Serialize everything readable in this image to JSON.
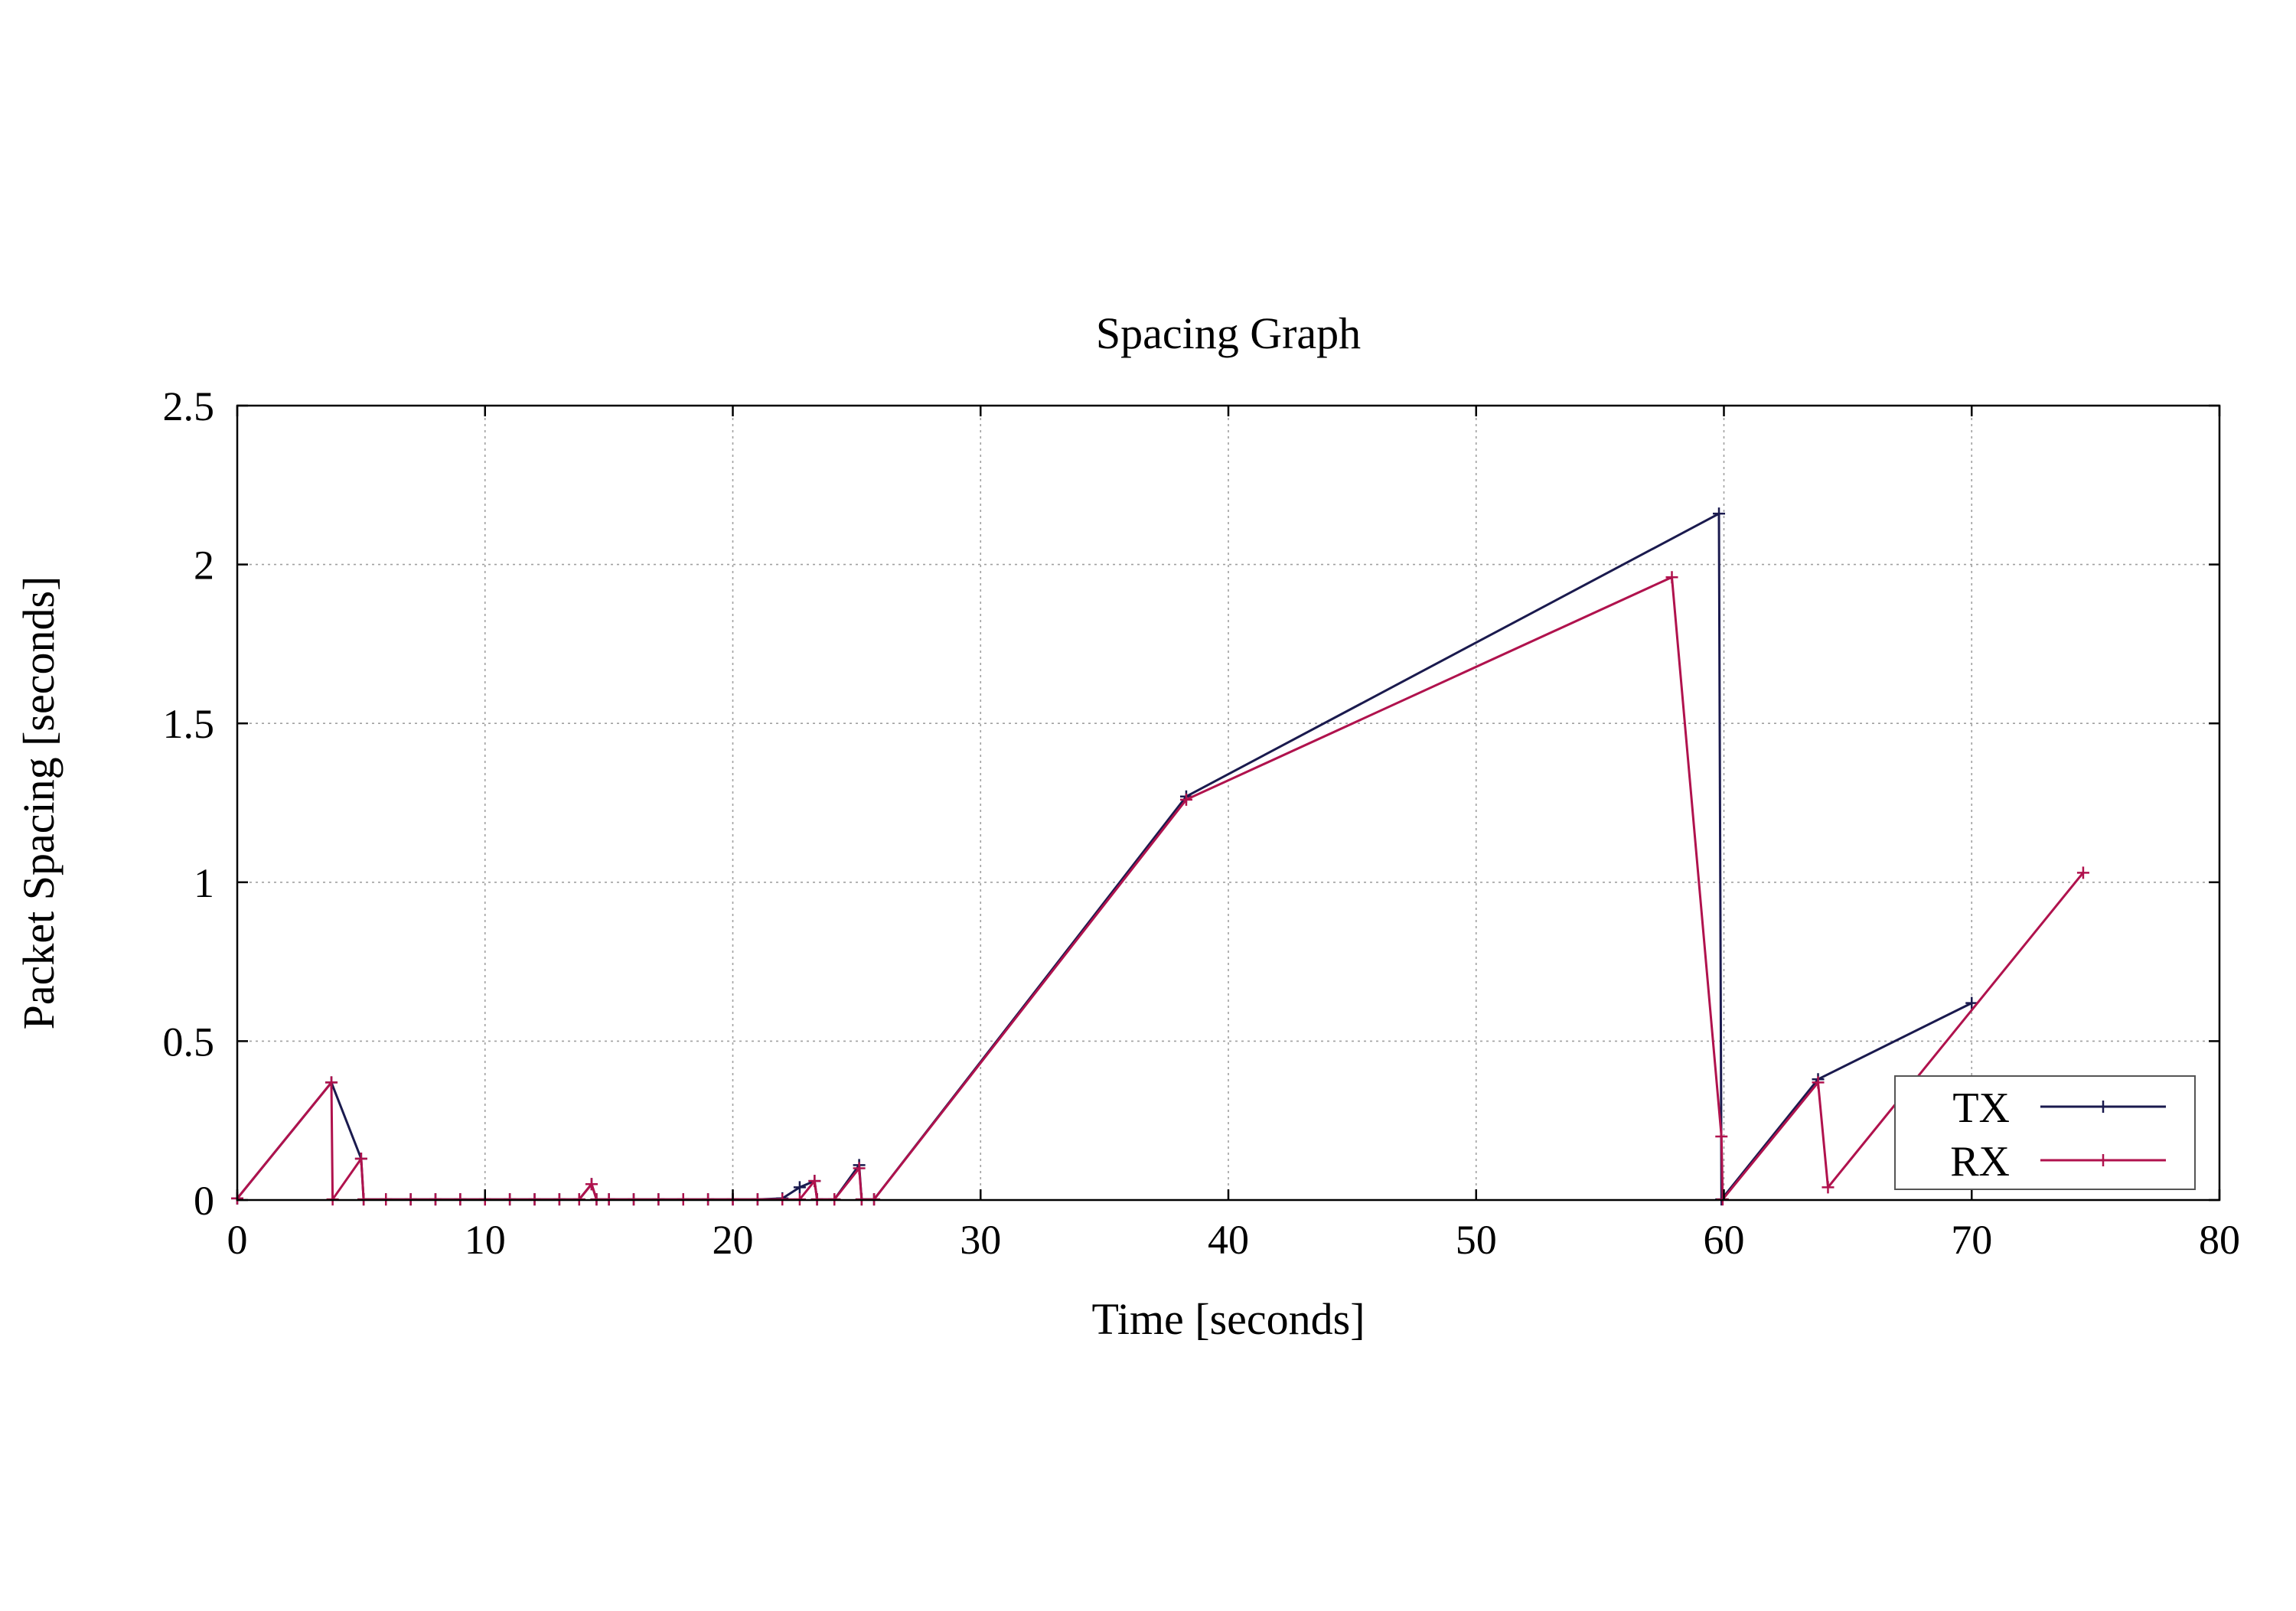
{
  "chart_data": {
    "type": "line",
    "title": "Spacing Graph",
    "xlabel": "Time [seconds]",
    "ylabel": "Packet Spacing [seconds]",
    "xlim": [
      0,
      80
    ],
    "ylim": [
      0,
      2.5
    ],
    "x_ticks": [
      0,
      10,
      20,
      30,
      40,
      50,
      60,
      70,
      80
    ],
    "x_tick_labels": [
      "0",
      "10",
      "20",
      "30",
      "40",
      "50",
      "60",
      "70",
      "80"
    ],
    "y_ticks": [
      0,
      0.5,
      1,
      1.5,
      2,
      2.5
    ],
    "y_tick_labels": [
      "0",
      "0.5",
      "1",
      "1.5",
      "2",
      "2.5"
    ],
    "grid": true,
    "legend_position": "bottom-right",
    "series": [
      {
        "name": "TX",
        "color": "#1a1a4e",
        "marker": "plus",
        "points": [
          [
            0,
            0.005
          ],
          [
            3.8,
            0.37
          ],
          [
            5.0,
            0.13
          ],
          [
            5.1,
            0.002
          ],
          [
            6,
            0.002
          ],
          [
            7,
            0.002
          ],
          [
            8,
            0.002
          ],
          [
            9,
            0.002
          ],
          [
            10,
            0.002
          ],
          [
            11,
            0.002
          ],
          [
            12,
            0.002
          ],
          [
            13,
            0.002
          ],
          [
            13.8,
            0.002
          ],
          [
            14.3,
            0.05
          ],
          [
            14.5,
            0.002
          ],
          [
            15,
            0.002
          ],
          [
            16,
            0.002
          ],
          [
            17,
            0.002
          ],
          [
            18,
            0.002
          ],
          [
            19,
            0.002
          ],
          [
            20,
            0.002
          ],
          [
            21,
            0.002
          ],
          [
            22,
            0.005
          ],
          [
            22.7,
            0.04
          ],
          [
            23.3,
            0.06
          ],
          [
            23.4,
            0.002
          ],
          [
            24.1,
            0.002
          ],
          [
            25.1,
            0.11
          ],
          [
            25.2,
            0.002
          ],
          [
            25.7,
            0.002
          ],
          [
            38.3,
            1.27
          ],
          [
            59.8,
            2.16
          ],
          [
            59.9,
            0.002
          ],
          [
            63.8,
            0.38
          ],
          [
            70.0,
            0.62
          ]
        ]
      },
      {
        "name": "RX",
        "color": "#b0124d",
        "marker": "plus",
        "points": [
          [
            0,
            0.005
          ],
          [
            3.8,
            0.37
          ],
          [
            3.85,
            0.002
          ],
          [
            5.0,
            0.13
          ],
          [
            5.1,
            0.002
          ],
          [
            6,
            0.002
          ],
          [
            7,
            0.002
          ],
          [
            8,
            0.002
          ],
          [
            9,
            0.002
          ],
          [
            10,
            0.002
          ],
          [
            11,
            0.002
          ],
          [
            12,
            0.002
          ],
          [
            13,
            0.002
          ],
          [
            13.8,
            0.002
          ],
          [
            14.3,
            0.05
          ],
          [
            14.5,
            0.002
          ],
          [
            15,
            0.002
          ],
          [
            16,
            0.002
          ],
          [
            17,
            0.002
          ],
          [
            18,
            0.002
          ],
          [
            19,
            0.002
          ],
          [
            20,
            0.002
          ],
          [
            21,
            0.002
          ],
          [
            22,
            0.002
          ],
          [
            22.7,
            0.002
          ],
          [
            23.3,
            0.06
          ],
          [
            23.4,
            0.002
          ],
          [
            24.1,
            0.002
          ],
          [
            25.1,
            0.1
          ],
          [
            25.2,
            0.002
          ],
          [
            25.7,
            0.002
          ],
          [
            38.3,
            1.26
          ],
          [
            57.9,
            1.96
          ],
          [
            59.9,
            0.2
          ],
          [
            59.95,
            0.002
          ],
          [
            63.8,
            0.37
          ],
          [
            64.2,
            0.04
          ],
          [
            74.5,
            1.03
          ]
        ]
      }
    ]
  }
}
